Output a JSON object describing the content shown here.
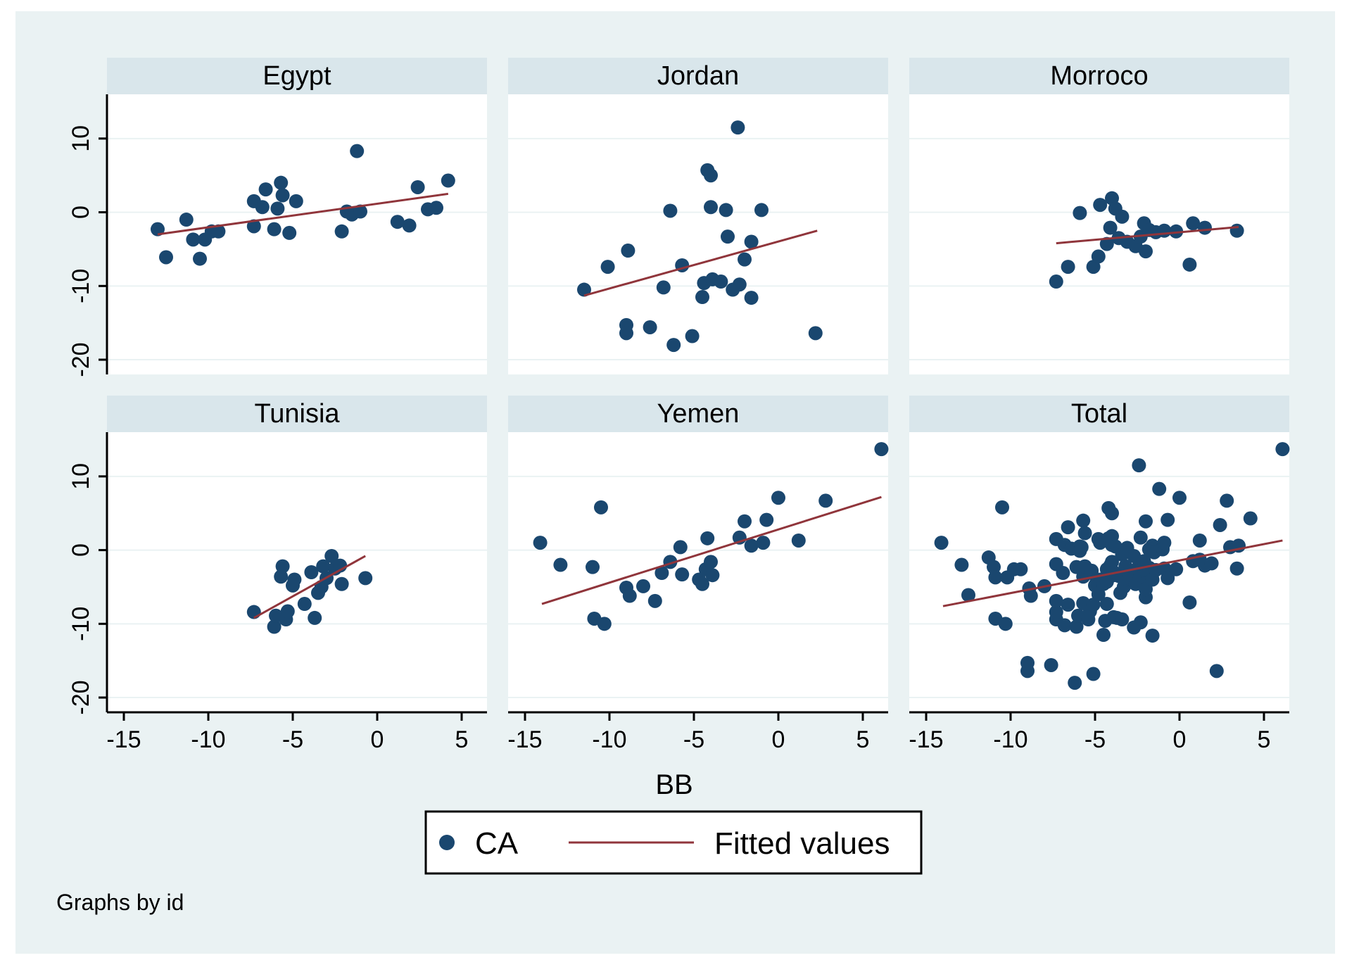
{
  "chart_data": {
    "type": "scatter",
    "note": "Graphs by id",
    "xlabel": "BB",
    "ylabel": "",
    "xlim": [
      -16,
      6.5
    ],
    "ylim": [
      -22,
      16
    ],
    "xticks": [
      -15,
      -10,
      -5,
      0,
      5
    ],
    "xtick_labels": [
      "-15",
      "-10",
      "-5",
      "0",
      "5"
    ],
    "yticks": [
      -20,
      -10,
      0,
      10
    ],
    "ytick_labels": [
      "-20",
      "-10",
      "0",
      "10"
    ],
    "legend": {
      "position": "bottom",
      "entries": [
        "CA",
        "Fitted values"
      ]
    },
    "colors": {
      "outer_bg": "#eaf2f3",
      "header_bg": "#d9e6eb",
      "marker": "#1a476f",
      "fit": "#90353b",
      "grid": "#eaf2f3"
    },
    "panels": [
      {
        "title": "Egypt",
        "fit": [
          [
            -13,
            -3
          ],
          [
            4.2,
            2.5
          ]
        ],
        "points": [
          [
            -13,
            -2.3
          ],
          [
            -12.5,
            -6.1
          ],
          [
            -11.3,
            -1
          ],
          [
            -10.9,
            -3.7
          ],
          [
            -10.5,
            -6.3
          ],
          [
            -10.2,
            -3.7
          ],
          [
            -9.8,
            -2.6
          ],
          [
            -9.4,
            -2.6
          ],
          [
            -7.3,
            1.5
          ],
          [
            -7.3,
            -1.9
          ],
          [
            -6.8,
            0.7
          ],
          [
            -6.6,
            3.1
          ],
          [
            -6.1,
            -2.3
          ],
          [
            -5.9,
            0.5
          ],
          [
            -5.7,
            4
          ],
          [
            -5.6,
            2.3
          ],
          [
            -5.2,
            -2.8
          ],
          [
            -4.8,
            1.5
          ],
          [
            -2.1,
            -2.6
          ],
          [
            -1.8,
            0.1
          ],
          [
            -1.5,
            -0.3
          ],
          [
            -1.2,
            8.3
          ],
          [
            -1,
            0.1
          ],
          [
            1.2,
            -1.3
          ],
          [
            1.9,
            -1.8
          ],
          [
            2.4,
            3.4
          ],
          [
            3,
            0.4
          ],
          [
            3.5,
            0.6
          ],
          [
            4.2,
            4.3
          ]
        ]
      },
      {
        "title": "Jordan",
        "fit": [
          [
            -11.5,
            -11.3
          ],
          [
            2.3,
            -2.5
          ]
        ],
        "points": [
          [
            -11.5,
            -10.5
          ],
          [
            -10.1,
            -7.4
          ],
          [
            -9,
            -15.3
          ],
          [
            -9,
            -16.4
          ],
          [
            -8.9,
            -5.2
          ],
          [
            -7.6,
            -15.6
          ],
          [
            -6.8,
            -10.2
          ],
          [
            -6.4,
            0.2
          ],
          [
            -6.2,
            -18
          ],
          [
            -5.7,
            -7.2
          ],
          [
            -5.1,
            -16.8
          ],
          [
            -4.5,
            -11.5
          ],
          [
            -4.4,
            -9.6
          ],
          [
            -4.2,
            5.7
          ],
          [
            -4,
            5
          ],
          [
            -4,
            0.7
          ],
          [
            -3.9,
            -9.1
          ],
          [
            -3.4,
            -9.4
          ],
          [
            -3.1,
            0.3
          ],
          [
            -3,
            -3.3
          ],
          [
            -2.7,
            -10.5
          ],
          [
            -2.4,
            11.5
          ],
          [
            -2.3,
            -9.8
          ],
          [
            -2,
            -6.4
          ],
          [
            -1.6,
            -11.6
          ],
          [
            -1.6,
            -4
          ],
          [
            -1,
            0.3
          ],
          [
            2.2,
            -16.4
          ]
        ]
      },
      {
        "title": "Morroco",
        "fit": [
          [
            -7.3,
            -4.2
          ],
          [
            3.5,
            -2
          ]
        ],
        "points": [
          [
            -7.3,
            -9.4
          ],
          [
            -6.6,
            -7.4
          ],
          [
            -5.9,
            -0.1
          ],
          [
            -5.1,
            -7.4
          ],
          [
            -4.8,
            -6
          ],
          [
            -4.7,
            1
          ],
          [
            -4.3,
            -4.3
          ],
          [
            -4.1,
            -2.1
          ],
          [
            -4,
            1.9
          ],
          [
            -3.8,
            0.5
          ],
          [
            -3.6,
            -3.5
          ],
          [
            -3.4,
            -0.6
          ],
          [
            -3.1,
            -4
          ],
          [
            -2.6,
            -4.6
          ],
          [
            -2.3,
            -3.3
          ],
          [
            -2.1,
            -1.5
          ],
          [
            -2,
            -5.3
          ],
          [
            -1.8,
            -2.4
          ],
          [
            -1.4,
            -2.7
          ],
          [
            -0.9,
            -2.5
          ],
          [
            -0.2,
            -2.6
          ],
          [
            0.6,
            -7.1
          ],
          [
            0.8,
            -1.5
          ],
          [
            1.5,
            -2.1
          ],
          [
            3.4,
            -2.5
          ]
        ]
      },
      {
        "title": "Tunisia",
        "fit": [
          [
            -7.3,
            -9.2
          ],
          [
            -0.7,
            -0.8
          ]
        ],
        "points": [
          [
            -7.3,
            -8.4
          ],
          [
            -6.1,
            -10.4
          ],
          [
            -6,
            -8.9
          ],
          [
            -5.7,
            -3.6
          ],
          [
            -5.6,
            -2.2
          ],
          [
            -5.4,
            -9.4
          ],
          [
            -5.3,
            -8.3
          ],
          [
            -5,
            -4.8
          ],
          [
            -4.9,
            -4
          ],
          [
            -4.3,
            -7.3
          ],
          [
            -3.9,
            -3
          ],
          [
            -3.7,
            -9.2
          ],
          [
            -3.5,
            -5.8
          ],
          [
            -3.3,
            -5
          ],
          [
            -3.2,
            -2.2
          ],
          [
            -3,
            -3.8
          ],
          [
            -2.7,
            -0.8
          ],
          [
            -2.5,
            -2.5
          ],
          [
            -2.2,
            -2.1
          ],
          [
            -2.1,
            -4.6
          ],
          [
            -0.7,
            -3.8
          ]
        ]
      },
      {
        "title": "Yemen",
        "fit": [
          [
            -14,
            -7.3
          ],
          [
            6.1,
            7.2
          ]
        ],
        "points": [
          [
            -14.1,
            1
          ],
          [
            -12.9,
            -2
          ],
          [
            -11,
            -2.3
          ],
          [
            -10.9,
            -9.3
          ],
          [
            -10.5,
            5.8
          ],
          [
            -10.3,
            -10
          ],
          [
            -9,
            -5.1
          ],
          [
            -8.8,
            -6.2
          ],
          [
            -8,
            -4.9
          ],
          [
            -7.3,
            -6.9
          ],
          [
            -6.9,
            -3.1
          ],
          [
            -6.4,
            -1.6
          ],
          [
            -5.8,
            0.4
          ],
          [
            -5.7,
            -3.3
          ],
          [
            -4.7,
            -4
          ],
          [
            -4.5,
            -4.6
          ],
          [
            -4.3,
            -2.6
          ],
          [
            -4.2,
            1.6
          ],
          [
            -4,
            -1.6
          ],
          [
            -3.9,
            -3.4
          ],
          [
            -2.3,
            1.7
          ],
          [
            -2,
            3.9
          ],
          [
            -1.6,
            0.6
          ],
          [
            -0.9,
            1
          ],
          [
            -0.7,
            4.1
          ],
          [
            0,
            7.1
          ],
          [
            1.2,
            1.3
          ],
          [
            2.8,
            6.7
          ],
          [
            6.1,
            13.7
          ]
        ]
      },
      {
        "title": "Total",
        "fit": [
          [
            -14,
            -7.6
          ],
          [
            6.1,
            1.3
          ]
        ],
        "points": [
          [
            -14.1,
            1
          ],
          [
            -12.9,
            -2
          ],
          [
            -12.5,
            -6.1
          ],
          [
            -11.3,
            -1
          ],
          [
            -11,
            -2.3
          ],
          [
            -10.9,
            -3.7
          ],
          [
            -10.9,
            -9.3
          ],
          [
            -10.5,
            5.8
          ],
          [
            -10.3,
            -10
          ],
          [
            -10.2,
            -3.7
          ],
          [
            -9.8,
            -2.6
          ],
          [
            -9.4,
            -2.6
          ],
          [
            -9,
            -15.3
          ],
          [
            -9,
            -16.4
          ],
          [
            -8.9,
            -5.2
          ],
          [
            -8.8,
            -6.2
          ],
          [
            -8,
            -4.9
          ],
          [
            -7.6,
            -15.6
          ],
          [
            -7.3,
            1.5
          ],
          [
            -7.3,
            -1.9
          ],
          [
            -7.3,
            -9.4
          ],
          [
            -7.3,
            -8.4
          ],
          [
            -7.3,
            -6.9
          ],
          [
            -6.9,
            -3.1
          ],
          [
            -6.8,
            0.7
          ],
          [
            -6.8,
            -10.2
          ],
          [
            -6.6,
            3.1
          ],
          [
            -6.6,
            -7.4
          ],
          [
            -6.4,
            0.2
          ],
          [
            -6.2,
            -18
          ],
          [
            -6.1,
            -2.3
          ],
          [
            -6.1,
            -10.4
          ],
          [
            -6,
            -8.9
          ],
          [
            -5.9,
            0.5
          ],
          [
            -5.9,
            -0.1
          ],
          [
            -5.8,
            0.4
          ],
          [
            -5.7,
            4
          ],
          [
            -5.7,
            -7.2
          ],
          [
            -5.7,
            -3.6
          ],
          [
            -5.6,
            2.3
          ],
          [
            -5.6,
            -2.2
          ],
          [
            -5.4,
            -9.4
          ],
          [
            -5.3,
            -8.3
          ],
          [
            -5.2,
            -2.8
          ],
          [
            -5.1,
            -7.4
          ],
          [
            -5.1,
            -16.8
          ],
          [
            -5,
            -4.8
          ],
          [
            -4.9,
            -4
          ],
          [
            -4.8,
            1.5
          ],
          [
            -4.8,
            -6
          ],
          [
            -4.7,
            1
          ],
          [
            -4.7,
            -4
          ],
          [
            -4.5,
            -11.5
          ],
          [
            -4.5,
            -4.6
          ],
          [
            -4.4,
            -9.6
          ],
          [
            -4.3,
            -4.3
          ],
          [
            -4.3,
            -7.3
          ],
          [
            -4.3,
            -2.6
          ],
          [
            -4.2,
            5.7
          ],
          [
            -4.2,
            1.6
          ],
          [
            -4.1,
            -2.1
          ],
          [
            -4,
            5
          ],
          [
            -4,
            0.7
          ],
          [
            -4,
            1.9
          ],
          [
            -4,
            -1.6
          ],
          [
            -3.9,
            -9.1
          ],
          [
            -3.9,
            -3
          ],
          [
            -3.9,
            -3.4
          ],
          [
            -3.8,
            0.5
          ],
          [
            -3.7,
            -9.2
          ],
          [
            -3.6,
            -3.5
          ],
          [
            -3.5,
            -5.8
          ],
          [
            -3.4,
            -9.4
          ],
          [
            -3.4,
            -0.6
          ],
          [
            -3.3,
            -5
          ],
          [
            -3.2,
            -2.2
          ],
          [
            -3.1,
            0.3
          ],
          [
            -3.1,
            -4
          ],
          [
            -3,
            -3.3
          ],
          [
            -3,
            -3.8
          ],
          [
            -2.7,
            -10.5
          ],
          [
            -2.7,
            -0.8
          ],
          [
            -2.6,
            -4.6
          ],
          [
            -2.5,
            -2.5
          ],
          [
            -2.4,
            11.5
          ],
          [
            -2.3,
            -9.8
          ],
          [
            -2.3,
            -3.3
          ],
          [
            -2.3,
            1.7
          ],
          [
            -2.2,
            -2.1
          ],
          [
            -2.1,
            -2.6
          ],
          [
            -2.1,
            -4.6
          ],
          [
            -2.1,
            -1.5
          ],
          [
            -2,
            -6.4
          ],
          [
            -2,
            -5.3
          ],
          [
            -2,
            3.9
          ],
          [
            -1.8,
            0.1
          ],
          [
            -1.8,
            -2.4
          ],
          [
            -1.6,
            -11.6
          ],
          [
            -1.6,
            -4
          ],
          [
            -1.6,
            0.6
          ],
          [
            -1.5,
            -0.3
          ],
          [
            -1.4,
            -2.7
          ],
          [
            -1.2,
            8.3
          ],
          [
            -1,
            0.1
          ],
          [
            -1,
            0.3
          ],
          [
            -0.9,
            -2.5
          ],
          [
            -0.9,
            1
          ],
          [
            -0.7,
            -3.8
          ],
          [
            -0.7,
            4.1
          ],
          [
            -0.2,
            -2.6
          ],
          [
            0,
            7.1
          ],
          [
            0.6,
            -7.1
          ],
          [
            0.8,
            -1.5
          ],
          [
            1.2,
            -1.3
          ],
          [
            1.2,
            1.3
          ],
          [
            1.5,
            -2.1
          ],
          [
            1.9,
            -1.8
          ],
          [
            2.2,
            -16.4
          ],
          [
            2.4,
            3.4
          ],
          [
            2.8,
            6.7
          ],
          [
            3,
            0.4
          ],
          [
            3.4,
            -2.5
          ],
          [
            3.5,
            0.6
          ],
          [
            4.2,
            4.3
          ],
          [
            6.1,
            13.7
          ]
        ]
      }
    ]
  }
}
